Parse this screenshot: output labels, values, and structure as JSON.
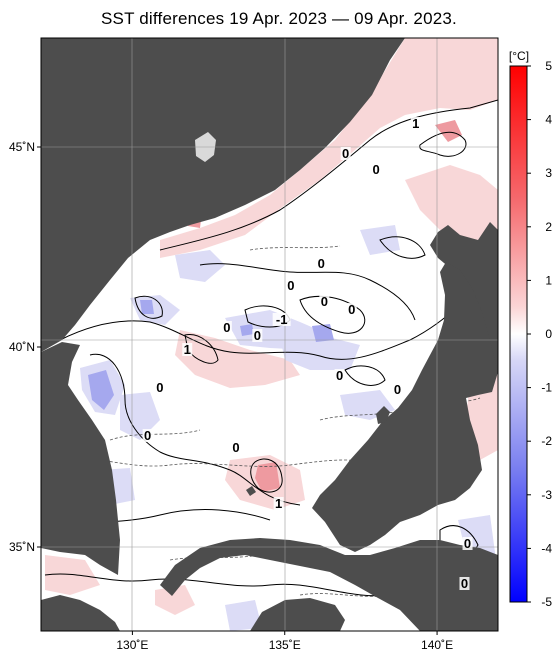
{
  "title": "SST differences 19 Apr. 2023 — 09 Apr. 2023.",
  "map": {
    "lat_ticks": [
      {
        "value": 45,
        "label": "45˚N"
      },
      {
        "value": 40,
        "label": "40˚N"
      },
      {
        "value": 35,
        "label": "35˚N"
      }
    ],
    "lon_ticks": [
      {
        "value": 130,
        "label": "130˚E"
      },
      {
        "value": 135,
        "label": "135˚E"
      },
      {
        "value": 140,
        "label": "140˚E"
      }
    ],
    "lon_range": [
      127,
      142
    ],
    "lat_range": [
      33,
      47.5
    ],
    "land_color": "#4d4d4d",
    "sea_color": "#ffffff",
    "contour_labels": [
      {
        "text": "1",
        "lon": 139.3,
        "lat": 45.5
      },
      {
        "text": "0",
        "lon": 137.0,
        "lat": 44.75
      },
      {
        "text": "0",
        "lon": 138.0,
        "lat": 44.35
      },
      {
        "text": "0",
        "lon": 136.2,
        "lat": 42.0
      },
      {
        "text": "0",
        "lon": 135.2,
        "lat": 41.45
      },
      {
        "text": "0",
        "lon": 136.3,
        "lat": 41.05
      },
      {
        "text": "0",
        "lon": 137.2,
        "lat": 40.85
      },
      {
        "text": "-1",
        "lon": 134.9,
        "lat": 40.6
      },
      {
        "text": "0",
        "lon": 133.1,
        "lat": 40.4
      },
      {
        "text": "0",
        "lon": 134.1,
        "lat": 40.2
      },
      {
        "text": "1",
        "lon": 131.8,
        "lat": 39.85
      },
      {
        "text": "0",
        "lon": 130.9,
        "lat": 38.9
      },
      {
        "text": "0",
        "lon": 136.8,
        "lat": 39.2
      },
      {
        "text": "0",
        "lon": 138.7,
        "lat": 38.85
      },
      {
        "text": "0",
        "lon": 130.5,
        "lat": 37.7
      },
      {
        "text": "0",
        "lon": 133.4,
        "lat": 37.4
      },
      {
        "text": "1",
        "lon": 134.8,
        "lat": 36.0
      },
      {
        "text": "0",
        "lon": 141.0,
        "lat": 35.0
      },
      {
        "text": "0",
        "lon": 140.9,
        "lat": 34.0
      }
    ]
  },
  "colorbar": {
    "unit_label": "[°C]",
    "ticks": [
      "5",
      "4",
      "3",
      "2",
      "1",
      "0",
      "-1",
      "-2",
      "-3",
      "-4",
      "-5"
    ],
    "min": -5,
    "max": 5,
    "warm_color": "#e8101a",
    "cool_color": "#1428f0",
    "neutral_color": "#ffffff"
  }
}
